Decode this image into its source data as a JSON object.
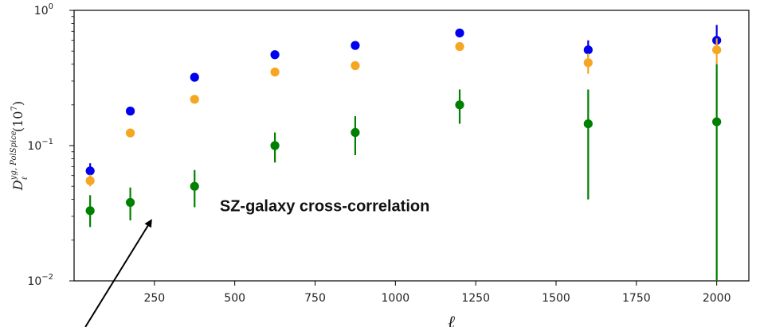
{
  "chart_data": {
    "type": "scatter",
    "title": "",
    "xlabel": "ℓ",
    "ylabel": "D_ℓ^{yg, PolSpice} (10^7)",
    "ylabel_parts": {
      "base": "D",
      "sup": "yg, PolSpice",
      "sub": "ℓ",
      "tail": "(10",
      "tail_sup": "7",
      "tail_end": ")"
    },
    "yscale": "log",
    "xlim": [
      0,
      2100
    ],
    "ylim": [
      0.01,
      1
    ],
    "xticks": [
      250,
      500,
      750,
      1000,
      1250,
      1500,
      1750,
      2000
    ],
    "yticks": [
      {
        "value": 0.01,
        "base": "10",
        "exp": "−2"
      },
      {
        "value": 0.1,
        "base": "10",
        "exp": "−1"
      },
      {
        "value": 1,
        "base": "10",
        "exp": "0"
      }
    ],
    "grid": false,
    "series": [
      {
        "color": "#0000ee",
        "points": [
          {
            "x": 50,
            "y": 0.065,
            "lo": 0.058,
            "hi": 0.074
          },
          {
            "x": 175,
            "y": 0.18,
            "lo": 0.17,
            "hi": 0.19
          },
          {
            "x": 375,
            "y": 0.32,
            "lo": 0.31,
            "hi": 0.335
          },
          {
            "x": 625,
            "y": 0.47,
            "lo": 0.455,
            "hi": 0.485
          },
          {
            "x": 875,
            "y": 0.55,
            "lo": 0.535,
            "hi": 0.565
          },
          {
            "x": 1200,
            "y": 0.68,
            "lo": 0.665,
            "hi": 0.695
          },
          {
            "x": 1600,
            "y": 0.51,
            "lo": 0.45,
            "hi": 0.6
          },
          {
            "x": 2000,
            "y": 0.6,
            "lo": 0.5,
            "hi": 0.78
          }
        ]
      },
      {
        "color": "#f5a623",
        "points": [
          {
            "x": 50,
            "y": 0.055,
            "lo": 0.05,
            "hi": 0.061
          },
          {
            "x": 175,
            "y": 0.124,
            "lo": 0.119,
            "hi": 0.13
          },
          {
            "x": 375,
            "y": 0.22,
            "lo": 0.212,
            "hi": 0.228
          },
          {
            "x": 625,
            "y": 0.35,
            "lo": 0.34,
            "hi": 0.36
          },
          {
            "x": 875,
            "y": 0.39,
            "lo": 0.375,
            "hi": 0.405
          },
          {
            "x": 1200,
            "y": 0.54,
            "lo": 0.525,
            "hi": 0.555
          },
          {
            "x": 1600,
            "y": 0.41,
            "lo": 0.34,
            "hi": 0.48
          },
          {
            "x": 2000,
            "y": 0.51,
            "lo": 0.4,
            "hi": 0.62
          }
        ]
      },
      {
        "color": "#008000",
        "points": [
          {
            "x": 50,
            "y": 0.033,
            "lo": 0.025,
            "hi": 0.043
          },
          {
            "x": 175,
            "y": 0.038,
            "lo": 0.028,
            "hi": 0.049
          },
          {
            "x": 375,
            "y": 0.05,
            "lo": 0.035,
            "hi": 0.066
          },
          {
            "x": 625,
            "y": 0.1,
            "lo": 0.075,
            "hi": 0.125
          },
          {
            "x": 875,
            "y": 0.125,
            "lo": 0.085,
            "hi": 0.165
          },
          {
            "x": 1200,
            "y": 0.2,
            "lo": 0.145,
            "hi": 0.26
          },
          {
            "x": 1600,
            "y": 0.145,
            "lo": 0.04,
            "hi": 0.26
          },
          {
            "x": 2000,
            "y": 0.15,
            "lo": 0.01,
            "hi": 0.4
          }
        ]
      }
    ],
    "annotations": [
      {
        "text": "SZ-galaxy cross-correlation",
        "x": 780,
        "y": 0.0355
      }
    ],
    "arrow": {
      "from": {
        "x": 35,
        "y": 0.0065
      },
      "to": {
        "x": 240,
        "y": 0.028
      }
    }
  }
}
